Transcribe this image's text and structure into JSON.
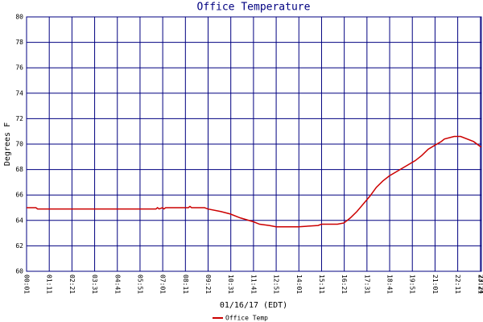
{
  "chart_data": {
    "type": "line",
    "title": "Office Temperature",
    "x_label": "01/16/17 (EDT)",
    "y_label": "Degrees F",
    "grid": true,
    "legend": "bottom",
    "ylim": [
      60,
      80
    ],
    "yticks": [
      60,
      62,
      64,
      66,
      68,
      70,
      72,
      74,
      76,
      78,
      80
    ],
    "xlim": [
      1,
      1404
    ],
    "xticks": [
      {
        "value": 1,
        "label": "00:01"
      },
      {
        "value": 71,
        "label": "01:11"
      },
      {
        "value": 141,
        "label": "02:21"
      },
      {
        "value": 211,
        "label": "03:31"
      },
      {
        "value": 281,
        "label": "04:41"
      },
      {
        "value": 351,
        "label": "05:51"
      },
      {
        "value": 421,
        "label": "07:01"
      },
      {
        "value": 491,
        "label": "08:11"
      },
      {
        "value": 561,
        "label": "09:21"
      },
      {
        "value": 631,
        "label": "10:31"
      },
      {
        "value": 701,
        "label": "11:41"
      },
      {
        "value": 771,
        "label": "12:51"
      },
      {
        "value": 841,
        "label": "14:01"
      },
      {
        "value": 911,
        "label": "15:11"
      },
      {
        "value": 981,
        "label": "16:21"
      },
      {
        "value": 1051,
        "label": "17:31"
      },
      {
        "value": 1121,
        "label": "18:41"
      },
      {
        "value": 1191,
        "label": "19:51"
      },
      {
        "value": 1261,
        "label": "21:01"
      },
      {
        "value": 1331,
        "label": "22:11"
      },
      {
        "value": 1401,
        "label": "23:21"
      },
      {
        "value": 1404,
        "label": "23:24"
      }
    ],
    "x": [
      1,
      30,
      35,
      60,
      400,
      405,
      410,
      420,
      425,
      430,
      440,
      445,
      460,
      500,
      505,
      510,
      550,
      560,
      600,
      630,
      660,
      700,
      720,
      750,
      771,
      780,
      840,
      900,
      911,
      960,
      980,
      1000,
      1020,
      1040,
      1060,
      1080,
      1100,
      1120,
      1140,
      1160,
      1180,
      1200,
      1220,
      1240,
      1260,
      1280,
      1290,
      1320,
      1340,
      1380,
      1401,
      1404
    ],
    "series": [
      {
        "name": "Office Temp",
        "color": "#cc0000",
        "values": [
          65.0,
          65.0,
          64.9,
          64.9,
          64.9,
          65.0,
          64.9,
          65.0,
          64.9,
          65.0,
          65.0,
          65.0,
          65.0,
          65.0,
          65.1,
          65.0,
          65.0,
          64.9,
          64.7,
          64.5,
          64.2,
          63.9,
          63.7,
          63.6,
          63.5,
          63.5,
          63.5,
          63.6,
          63.7,
          63.7,
          63.8,
          64.2,
          64.7,
          65.3,
          65.9,
          66.6,
          67.1,
          67.5,
          67.8,
          68.1,
          68.4,
          68.7,
          69.1,
          69.6,
          69.9,
          70.2,
          70.4,
          70.6,
          70.6,
          70.2,
          69.8,
          69.8
        ]
      }
    ]
  }
}
